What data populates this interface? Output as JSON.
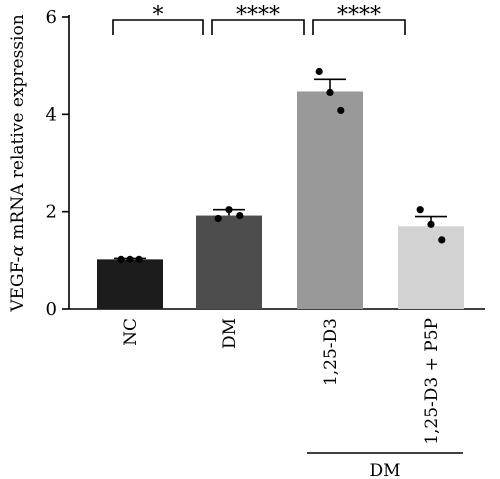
{
  "chart_data": {
    "type": "bar",
    "ylabel": "VEGF-α mRNA relative expression",
    "ylabel_prefix": "VEGF-",
    "ylabel_symbol": "α",
    "ylabel_suffix": " mRNA relative expression",
    "ylim": [
      0,
      6
    ],
    "yticks": [
      "0",
      "2",
      "4",
      "6"
    ],
    "categories": [
      "NC",
      "DM",
      "1,25-D3",
      "1,25-D3 + P5P"
    ],
    "values": [
      1.02,
      1.92,
      4.47,
      1.7
    ],
    "errors": [
      0.02,
      0.12,
      0.25,
      0.2
    ],
    "points": [
      [
        1.02,
        1.02,
        1.02
      ],
      [
        1.86,
        2.04,
        1.92
      ],
      [
        4.88,
        4.45,
        4.08
      ],
      [
        2.04,
        1.74,
        1.42
      ]
    ],
    "colors": [
      "#1c1c1c",
      "#4d4d4d",
      "#999999",
      "#d2d2d2"
    ],
    "significance": [
      {
        "from": 0,
        "to": 1,
        "label": "*"
      },
      {
        "from": 1,
        "to": 2,
        "label": "****"
      },
      {
        "from": 2,
        "to": 3,
        "label": "****"
      }
    ],
    "group_label": {
      "label": "DM",
      "from": 2,
      "to": 3
    }
  }
}
